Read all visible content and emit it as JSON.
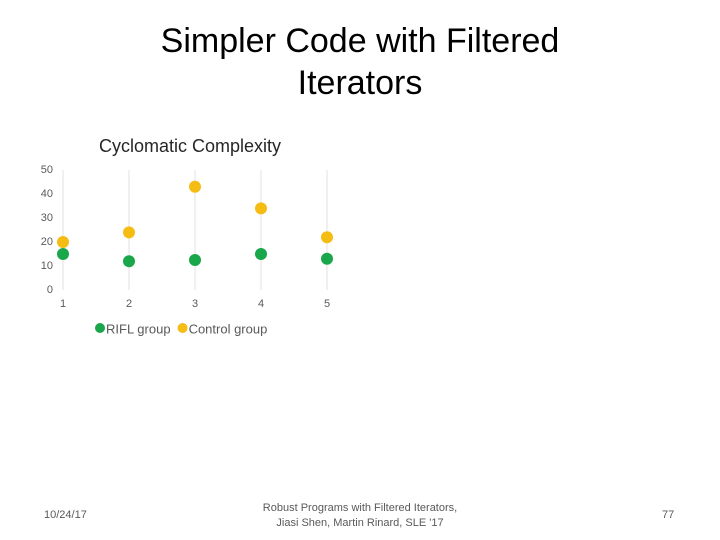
{
  "slide_title": "Simpler Code with Filtered Iterators",
  "chart_data": {
    "type": "scatter",
    "title": "Cyclomatic Complexity",
    "x": [
      1,
      2,
      3,
      4,
      5
    ],
    "series": [
      {
        "name": "RIFL group",
        "color": "#1aa64a",
        "values": [
          15,
          12,
          12.5,
          15,
          13
        ]
      },
      {
        "name": "Control group",
        "color": "#f5bc14",
        "values": [
          20,
          24,
          43,
          34,
          22
        ]
      }
    ],
    "xlim": [
      1,
      5
    ],
    "xticks": [
      1,
      2,
      3,
      4,
      5
    ],
    "ylim": [
      0,
      50
    ],
    "yticks": [
      0,
      10,
      20,
      30,
      40,
      50
    ],
    "grid": true,
    "legend": "bottom"
  },
  "footer": {
    "date": "10/24/17",
    "center": [
      "Robust Programs with Filtered Iterators,",
      "Jiasi Shen, Martin Rinard, SLE '17"
    ],
    "page": "77"
  }
}
